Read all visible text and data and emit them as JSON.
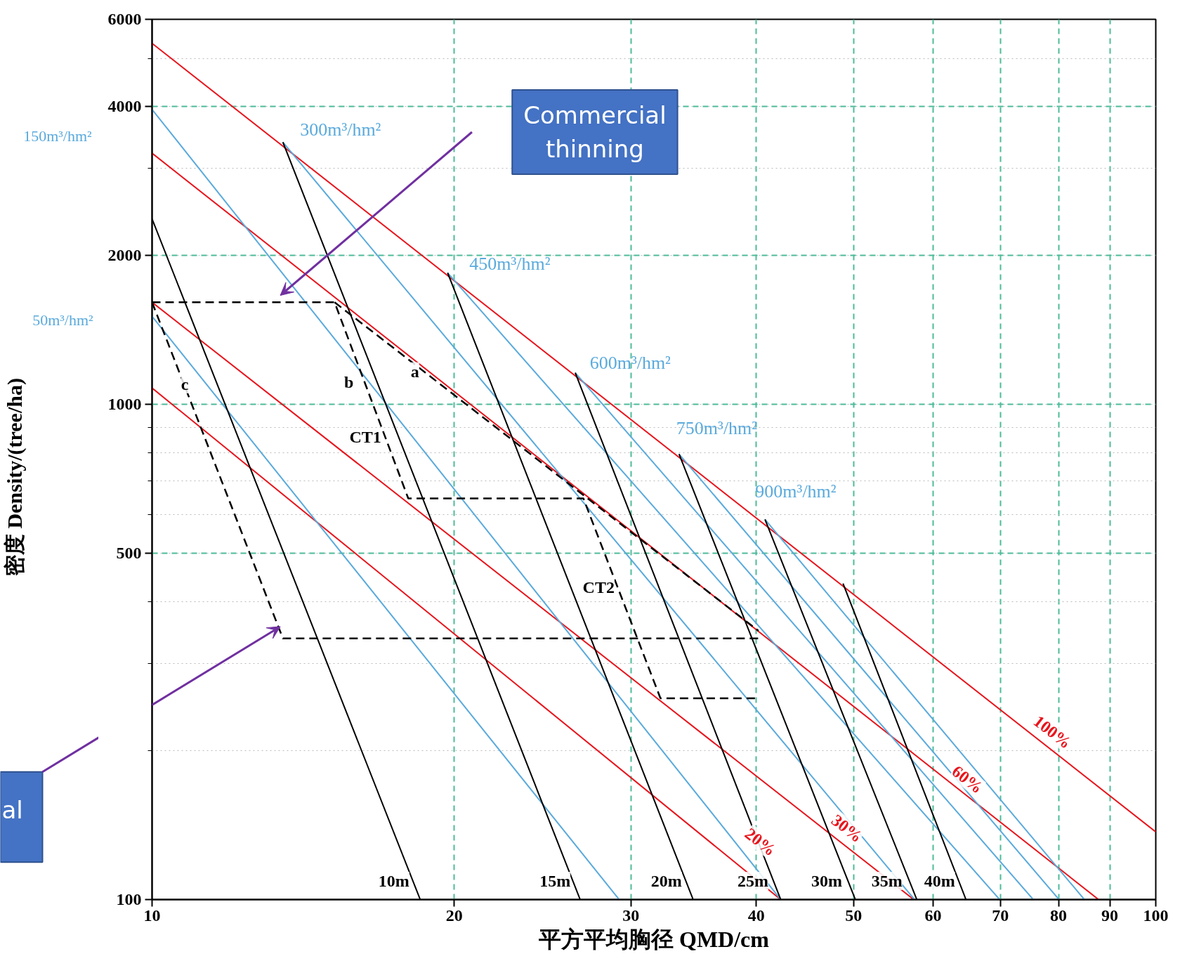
{
  "chart_data": {
    "type": "line",
    "xlabel": "平方平均胸径 QMD/cm",
    "ylabel": "密度 Density/(tree/ha)",
    "log": "xy",
    "grid": true,
    "xlim": [
      10,
      100
    ],
    "ylim": [
      100,
      6000
    ],
    "xticks": [
      10,
      20,
      30,
      40,
      50,
      60,
      70,
      80,
      90,
      100
    ],
    "yticks": [
      100,
      500,
      1000,
      2000,
      4000,
      6000
    ],
    "series": [
      {
        "color": "#e8141c",
        "x": [
          10,
          100
        ],
        "values": [
          5365,
          137
        ]
      },
      {
        "color": "#e8141c",
        "x": [
          10,
          87.7
        ],
        "values": [
          3218,
          100
        ]
      },
      {
        "color": "#e8141c",
        "x": [
          10,
          57.4
        ],
        "values": [
          1609,
          100
        ]
      },
      {
        "color": "#e8141c",
        "x": [
          10,
          42.3
        ],
        "values": [
          1080,
          100
        ]
      },
      {
        "color": "#5aaadc",
        "x": [
          10,
          42.3
        ],
        "values": [
          3945,
          100
        ]
      },
      {
        "color": "#5aaadc",
        "x": [
          10,
          29.2
        ],
        "values": [
          1507,
          100
        ]
      },
      {
        "color": "#5aaadc",
        "x": [
          13.5,
          57.5
        ],
        "values": [
          3389,
          100
        ]
      },
      {
        "color": "#5aaadc",
        "x": [
          19.7,
          69.9
        ],
        "values": [
          1845,
          100
        ]
      },
      {
        "color": "#5aaadc",
        "x": [
          26.4,
          75.5
        ],
        "values": [
          1159,
          100
        ]
      },
      {
        "color": "#5aaadc",
        "x": [
          33.5,
          80.1
        ],
        "values": [
          794,
          100
        ]
      },
      {
        "color": "#5aaadc",
        "x": [
          40.8,
          84.9
        ],
        "values": [
          586,
          100
        ]
      },
      {
        "color": "#000000",
        "x": [
          10,
          18.5
        ],
        "values": [
          2371,
          100
        ]
      },
      {
        "color": "#000000",
        "x": [
          13.5,
          26.7
        ],
        "values": [
          3389,
          100
        ]
      },
      {
        "color": "#000000",
        "x": [
          19.7,
          34.6
        ],
        "values": [
          1845,
          100
        ]
      },
      {
        "color": "#000000",
        "x": [
          26.4,
          42.3
        ],
        "values": [
          1159,
          100
        ]
      },
      {
        "color": "#000000",
        "x": [
          33.5,
          50.2
        ],
        "values": [
          794,
          100
        ]
      },
      {
        "color": "#000000",
        "x": [
          40.8,
          57.8
        ],
        "values": [
          586,
          100
        ]
      },
      {
        "color": "#000000",
        "x": [
          48.8,
          64.7
        ],
        "values": [
          435,
          100
        ]
      },
      {
        "color": "#000000",
        "line_style": "dashed",
        "x": [
          10,
          15.2,
          18.0,
          26.9,
          32.1,
          40.2
        ],
        "values": [
          1609,
          1609,
          646,
          646,
          255,
          255
        ]
      },
      {
        "color": "#000000",
        "line_style": "dashed",
        "x": [
          10,
          13.5,
          40.2
        ],
        "values": [
          1609,
          337,
          337
        ]
      },
      {
        "color": "#000000",
        "line_style": "dashed",
        "x": [
          15.2,
          40.2
        ],
        "values": [
          1609,
          349
        ]
      }
    ],
    "annotations": [
      "Commercial\nthinning",
      "al",
      "100%",
      "60%",
      "30%",
      "20%",
      "10m",
      "15m",
      "20m",
      "25m",
      "30m",
      "35m",
      "40m",
      "150m³/hm²",
      "50m³/hm²",
      "300m³/hm²",
      "450m³/hm²",
      "600m³/hm²",
      "750m³/hm²",
      "900m³/hm²",
      "a",
      "b",
      "c",
      "CT1",
      "CT2"
    ]
  }
}
